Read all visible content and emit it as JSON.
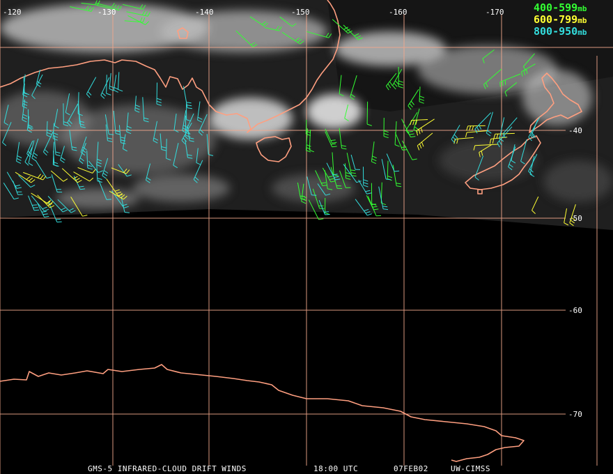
{
  "map": {
    "longitude_labels": [
      "-120",
      "-130",
      "-140",
      "-150",
      "-160",
      "-170"
    ],
    "latitude_labels": [
      "-40",
      "-50",
      "-60",
      "-70"
    ]
  },
  "legend": [
    {
      "range": "400-599",
      "unit": "mb",
      "color": "#33ff33"
    },
    {
      "range": "600-799",
      "unit": "mb",
      "color": "#ffff33"
    },
    {
      "range": "800-950",
      "unit": "mb",
      "color": "#33dddd"
    }
  ],
  "footer": {
    "product": "GMS-5 INFRARED-CLOUD DRIFT WINDS",
    "time": "18:00 UTC",
    "date": "07FEB02",
    "source": "UW-CIMSS"
  },
  "colors": {
    "coast": "#ff9f80",
    "grid": "#f2a88c"
  }
}
